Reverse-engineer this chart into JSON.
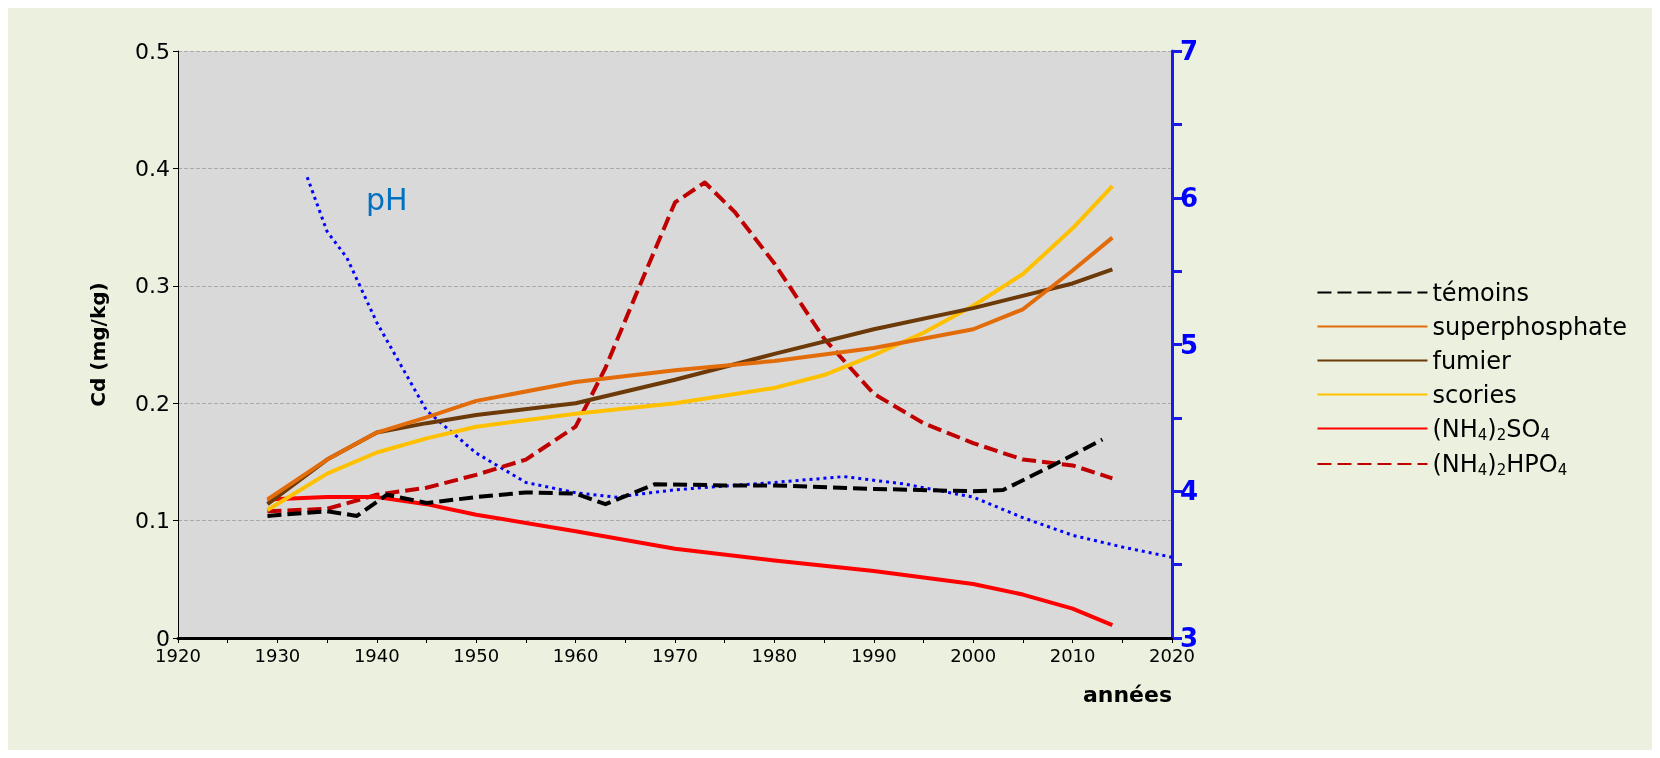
{
  "chart_data": {
    "type": "line",
    "xlabel": "années",
    "ylabel": "Cd (mg/kg)",
    "xlim": [
      1920,
      2020
    ],
    "xticks": [
      1920,
      {
        "value": 1925,
        "label": null
      },
      1930,
      {
        "value": 1935,
        "label": null
      },
      1940,
      {
        "value": 1945,
        "label": null
      },
      1950,
      {
        "value": 1955,
        "label": null
      },
      1960,
      {
        "value": 1965,
        "label": null
      },
      1970,
      {
        "value": 1975,
        "label": null
      },
      1980,
      {
        "value": 1985,
        "label": null
      },
      1990,
      {
        "value": 1995,
        "label": null
      },
      2000,
      {
        "value": 2005,
        "label": null
      },
      2010,
      {
        "value": 2015,
        "label": null
      },
      2020
    ],
    "ylim": [
      0,
      0.5
    ],
    "yticks": [
      0,
      0.1,
      0.2,
      0.3,
      0.4,
      0.5
    ],
    "y2lim": [
      3,
      7
    ],
    "y2ticks": [
      3,
      {
        "value": 3.5,
        "label": null
      },
      4,
      {
        "value": 4.5,
        "label": null
      },
      5,
      {
        "value": 5.5,
        "label": null
      },
      6,
      {
        "value": 6.5,
        "label": null
      },
      7
    ],
    "grid": "y",
    "legend": "right",
    "marker": "none",
    "series": [
      {
        "name": "témoins",
        "color": "#000000",
        "line_style": "dashed",
        "x": [
          1929,
          1935,
          1938,
          1941,
          1945,
          1950,
          1955,
          1960,
          1963,
          1968,
          1975,
          1980,
          1990,
          2000,
          2003,
          2008,
          2013
        ],
        "values": [
          0.104,
          0.108,
          0.104,
          0.122,
          0.115,
          0.12,
          0.124,
          0.123,
          0.114,
          0.131,
          0.13,
          0.13,
          0.127,
          0.125,
          0.126,
          0.147,
          0.169
        ]
      },
      {
        "name": "superphosphate",
        "color": "#e36c0a",
        "line_style": "solid",
        "x": [
          1929,
          1935,
          1940,
          1945,
          1950,
          1960,
          1970,
          1980,
          1990,
          2000,
          2005,
          2010,
          2014
        ],
        "values": [
          0.118,
          0.152,
          0.175,
          0.188,
          0.202,
          0.218,
          0.228,
          0.236,
          0.247,
          0.263,
          0.28,
          0.313,
          0.341
        ]
      },
      {
        "name": "fumier",
        "color": "#6b3a08",
        "line_style": "solid",
        "x": [
          1929,
          1935,
          1940,
          1945,
          1950,
          1960,
          1970,
          1980,
          1990,
          2000,
          2010,
          2014
        ],
        "values": [
          0.114,
          0.152,
          0.175,
          0.183,
          0.19,
          0.2,
          0.22,
          0.242,
          0.263,
          0.281,
          0.302,
          0.314
        ]
      },
      {
        "name": "scories",
        "color": "#ffc000",
        "line_style": "solid",
        "x": [
          1929,
          1935,
          1940,
          1945,
          1950,
          1960,
          1970,
          1980,
          1985,
          1990,
          1995,
          2000,
          2005,
          2010,
          2014
        ],
        "values": [
          0.109,
          0.14,
          0.158,
          0.17,
          0.18,
          0.191,
          0.2,
          0.213,
          0.224,
          0.241,
          0.26,
          0.283,
          0.31,
          0.349,
          0.385
        ]
      },
      {
        "name": "(NH$_{4}$)$_{2}$SO$_{4}$",
        "color": "#ff0000",
        "line_style": "solid",
        "x": [
          1929,
          1935,
          1940,
          1945,
          1950,
          1960,
          1970,
          1980,
          1990,
          2000,
          2005,
          2010,
          2014
        ],
        "values": [
          0.118,
          0.12,
          0.12,
          0.114,
          0.105,
          0.091,
          0.076,
          0.066,
          0.057,
          0.046,
          0.037,
          0.025,
          0.011
        ]
      },
      {
        "name": "(NH$_{4}$)$_{2}$HPO$_{4}$",
        "color": "#c00000",
        "line_style": "dashed",
        "x": [
          1929,
          1935,
          1940,
          1945,
          1950,
          1955,
          1960,
          1963,
          1966,
          1970,
          1973,
          1976,
          1980,
          1985,
          1990,
          1995,
          2000,
          2005,
          2010,
          2014
        ],
        "values": [
          0.108,
          0.11,
          0.122,
          0.128,
          0.139,
          0.152,
          0.18,
          0.23,
          0.291,
          0.371,
          0.388,
          0.363,
          0.319,
          0.255,
          0.208,
          0.183,
          0.166,
          0.152,
          0.147,
          0.136
        ]
      },
      {
        "name": "pH",
        "color": "#0000ff",
        "line_style": "dotted",
        "axis": "y2",
        "x": [
          1933,
          1935,
          1937,
          1940,
          1945,
          1950,
          1955,
          1960,
          1964,
          1970,
          1980,
          1987,
          1993,
          2000,
          2005,
          2010,
          2015,
          2020
        ],
        "values": [
          6.14,
          5.77,
          5.59,
          5.15,
          4.55,
          4.26,
          4.06,
          3.99,
          3.96,
          4.01,
          4.06,
          4.1,
          4.05,
          3.96,
          3.82,
          3.7,
          3.62,
          3.55
        ]
      }
    ]
  }
}
